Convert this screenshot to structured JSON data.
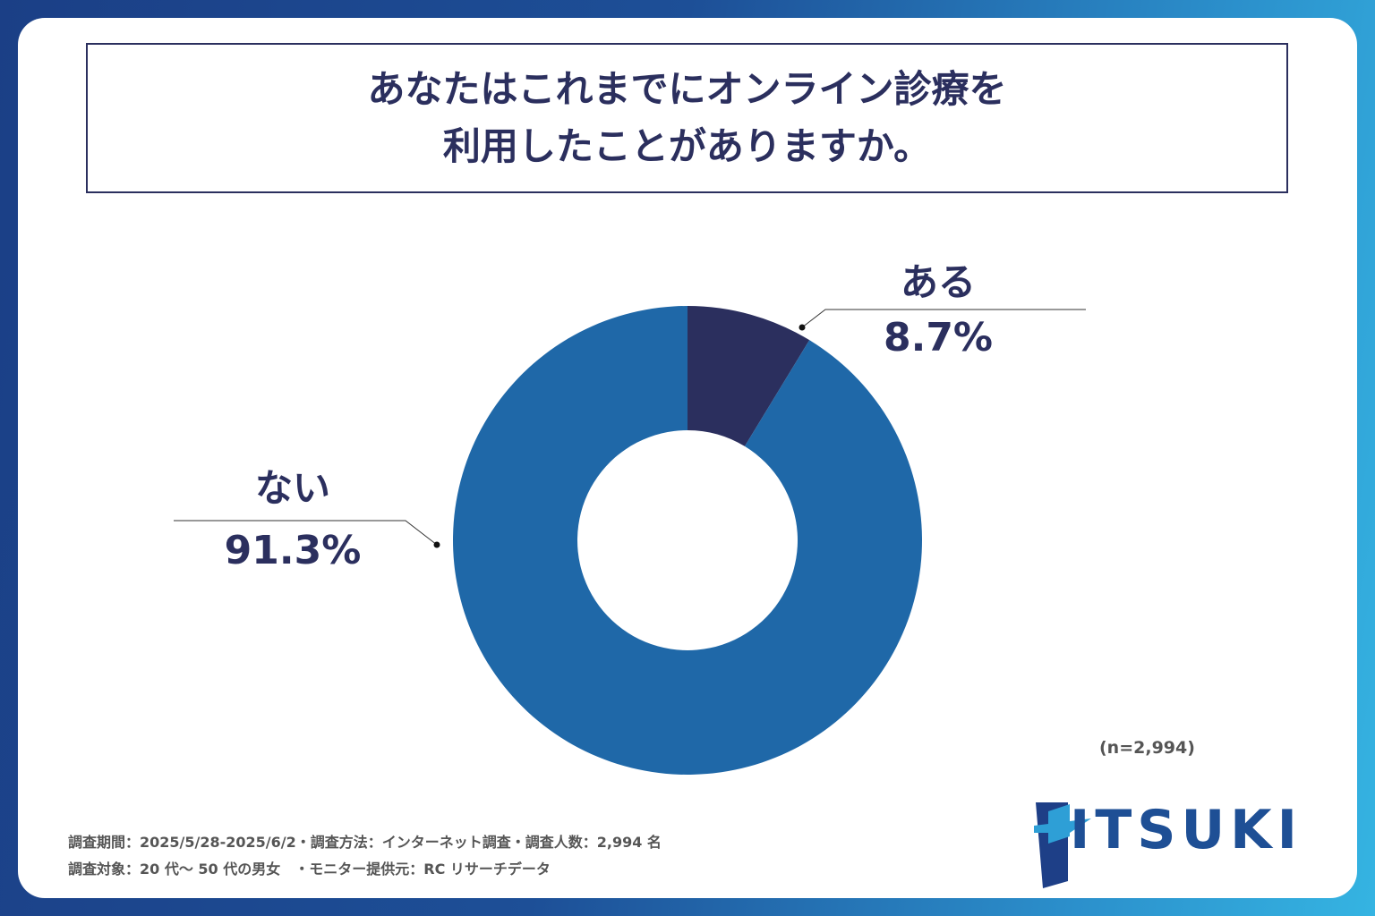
{
  "title_lines": [
    "あなたはこれまでにオンライン診療を",
    "利用したことがありますか。"
  ],
  "chart_data": {
    "type": "pie",
    "donut": true,
    "categories": [
      "ある",
      "ない"
    ],
    "values": [
      8.7,
      91.3
    ],
    "labels": [
      "8.7%",
      "91.3%"
    ],
    "colors": [
      "#2b2f5e",
      "#1f68a8"
    ],
    "start": "top, clockwise"
  },
  "sample_size": "(n=2,994)",
  "footer": [
    "調査期間：2025/5/28-2025/6/2・調査方法：インターネット調査・調査人数：2,994 名",
    "調査対象：20 代〜 50 代の男女　・モニター提供元：RC リサーチデータ"
  ],
  "logo_text": "ITSUKI"
}
